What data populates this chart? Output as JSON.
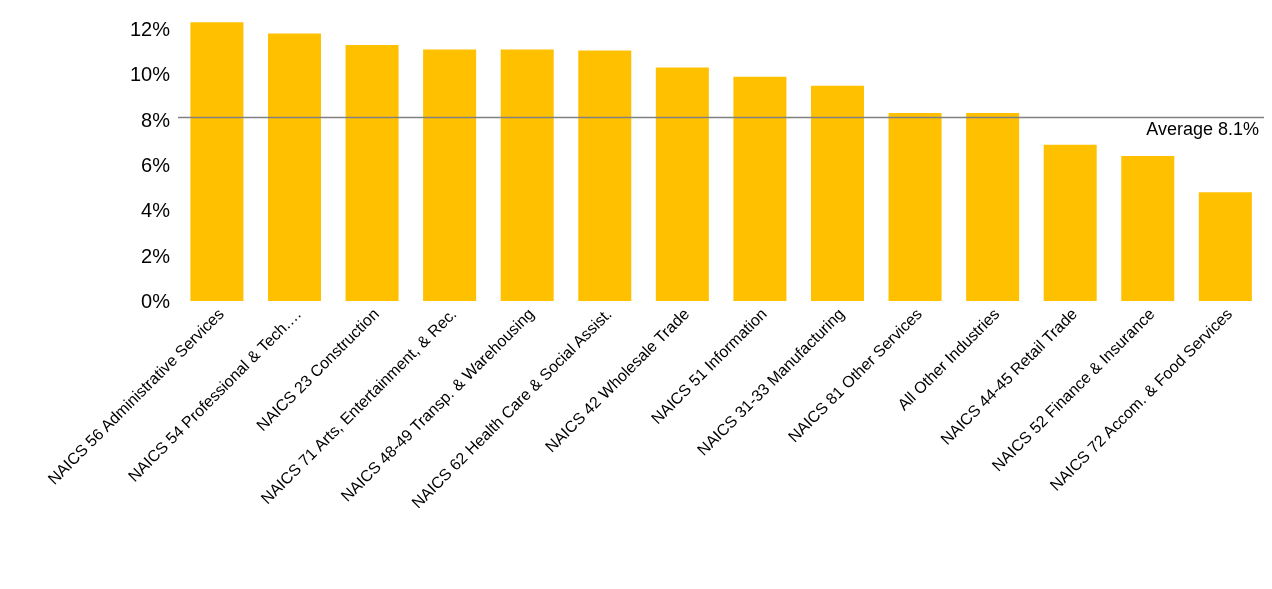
{
  "chart_data": {
    "type": "bar",
    "categories": [
      "NAICS 56 Administrative Services",
      "NAICS 54 Professional & Tech.…",
      "NAICS 23 Construction",
      "NAICS 71 Arts, Entertainment, & Rec.",
      "NAICS 48-49 Transp. & Warehousing",
      "NAICS 62 Health Care & Social Assist.",
      "NAICS 42 Wholesale Trade",
      "NAICS 51 Information",
      "NAICS 31-33 Manufacturing",
      "NAICS 81 Other Services",
      "All Other Industries",
      "NAICS 44-45 Retail Trade",
      "NAICS 52 Finance & Insurance",
      "NAICS 72 Accom. & Food Services"
    ],
    "values": [
      12.3,
      11.8,
      11.3,
      11.1,
      11.1,
      11.05,
      10.3,
      9.9,
      9.5,
      8.3,
      8.3,
      6.9,
      6.4,
      4.8
    ],
    "color": "#ffc000",
    "ylim": [
      0,
      12.4
    ],
    "yticks": [
      {
        "value": 0,
        "label": "0%"
      },
      {
        "value": 2,
        "label": "2%"
      },
      {
        "value": 4,
        "label": "4%"
      },
      {
        "value": 6,
        "label": "6%"
      },
      {
        "value": 8,
        "label": "8%"
      },
      {
        "value": 10,
        "label": "10%"
      },
      {
        "value": 12,
        "label": "12%"
      }
    ],
    "ref_lines": [
      {
        "axis": "y",
        "value": 8.1,
        "label": "Average 8.1%",
        "color": "#808080"
      }
    ],
    "grid": false,
    "legend": false
  }
}
